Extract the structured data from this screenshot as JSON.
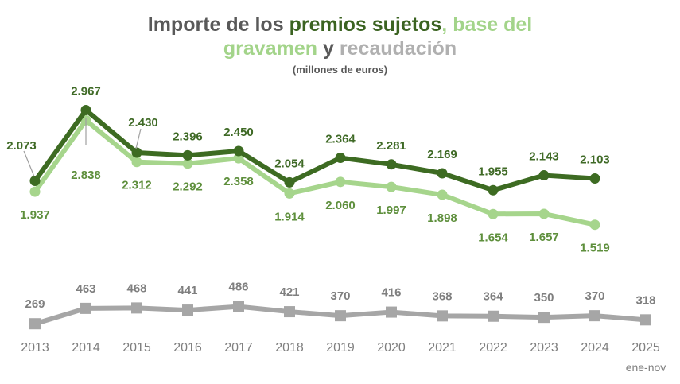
{
  "chart_data": {
    "type": "line",
    "title_parts": [
      {
        "text": "Importe de los ",
        "color": "#595959"
      },
      {
        "text": "premios sujetos",
        "color": "#3b6321"
      },
      {
        "text": ", base del ",
        "color": "#a3d48a"
      },
      {
        "text": "gravamen",
        "color": "#a3d48a"
      },
      {
        "text": " y ",
        "color": "#595959"
      },
      {
        "text": "recaudación",
        "color": "#b0b0b0"
      }
    ],
    "subtitle": "(millones de euros)",
    "categories": [
      "2013",
      "2014",
      "2015",
      "2016",
      "2017",
      "2018",
      "2019",
      "2020",
      "2021",
      "2022",
      "2023",
      "2024",
      "2025"
    ],
    "category_note": "ene-nov",
    "ylim": [
      0,
      3100
    ],
    "grid": false,
    "series": [
      {
        "name": "premios sujetos",
        "color": "#3d6b22",
        "label_color": "#3f6a26",
        "marker": "circle",
        "values": [
          2073,
          2967,
          2430,
          2396,
          2450,
          2054,
          2364,
          2281,
          2169,
          1955,
          2143,
          2103,
          null
        ],
        "labels": [
          "2.073",
          "2.967",
          "2.430",
          "2.396",
          "2.450",
          "2.054",
          "2.364",
          "2.281",
          "2.169",
          "1.955",
          "2.143",
          "2.103",
          ""
        ]
      },
      {
        "name": "base del gravamen",
        "color": "#a6d58c",
        "label_color": "#5e8f3c",
        "marker": "circle",
        "values": [
          1937,
          2838,
          2312,
          2292,
          2358,
          1914,
          2060,
          1997,
          1898,
          1654,
          1657,
          1519,
          null
        ],
        "labels": [
          "1.937",
          "2.838",
          "2.312",
          "2.292",
          "2.358",
          "1.914",
          "2.060",
          "1.997",
          "1.898",
          "1.654",
          "1.657",
          "1.519",
          ""
        ]
      },
      {
        "name": "recaudación",
        "color": "#a6a6a6",
        "label_color": "#7f7f7f",
        "marker": "square",
        "values": [
          269,
          463,
          468,
          441,
          486,
          421,
          370,
          416,
          368,
          364,
          350,
          370,
          318
        ],
        "labels": [
          "269",
          "463",
          "468",
          "441",
          "486",
          "421",
          "370",
          "416",
          "368",
          "364",
          "350",
          "370",
          "318"
        ]
      }
    ]
  }
}
